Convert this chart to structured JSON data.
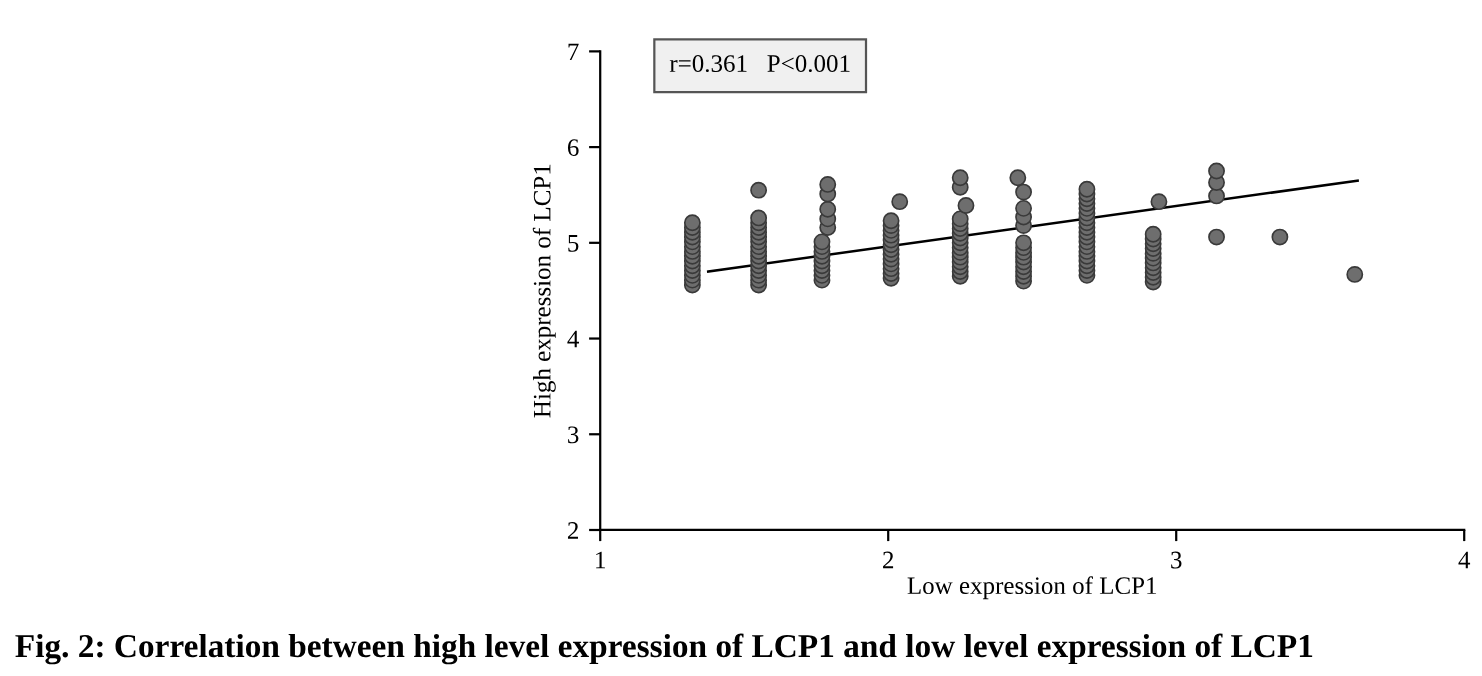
{
  "chart_data": {
    "type": "scatter",
    "title": "Fig. 2: Correlation between high level expression of LCP1 and low level expression of LCP1",
    "xlabel": "Low expression of LCP1",
    "ylabel": "High expression of LCP1",
    "xlim": [
      1,
      4
    ],
    "xticks": [
      1,
      2,
      3,
      4
    ],
    "ylim": [
      2,
      7
    ],
    "yticks": [
      2,
      3,
      4,
      5,
      6,
      7
    ],
    "grid": false,
    "legend": false,
    "annotations": [
      "r=0.361   P<0.001"
    ],
    "series": [
      {
        "color": "#6e6e6e",
        "marker": "circle",
        "x": [
          1.32,
          1.32,
          1.32,
          1.32,
          1.32,
          1.32,
          1.32,
          1.32,
          1.32,
          1.32,
          1.32,
          1.32,
          1.32,
          1.32,
          1.55,
          1.55,
          1.55,
          1.55,
          1.55,
          1.55,
          1.55,
          1.55,
          1.55,
          1.55,
          1.55,
          1.55,
          1.55,
          1.55,
          1.55,
          1.55,
          1.77,
          1.77,
          1.77,
          1.77,
          1.77,
          1.77,
          1.77,
          1.77,
          1.77,
          1.79,
          1.79,
          1.79,
          1.79,
          1.79,
          2.01,
          2.01,
          2.01,
          2.01,
          2.01,
          2.01,
          2.01,
          2.01,
          2.01,
          2.01,
          2.01,
          2.01,
          2.01,
          2.04,
          2.25,
          2.25,
          2.25,
          2.25,
          2.25,
          2.25,
          2.25,
          2.25,
          2.25,
          2.25,
          2.25,
          2.25,
          2.25,
          2.25,
          2.25,
          2.27,
          2.47,
          2.47,
          2.47,
          2.47,
          2.47,
          2.47,
          2.47,
          2.47,
          2.47,
          2.47,
          2.47,
          2.47,
          2.47,
          2.45,
          2.69,
          2.69,
          2.69,
          2.69,
          2.69,
          2.69,
          2.69,
          2.69,
          2.69,
          2.69,
          2.69,
          2.69,
          2.69,
          2.69,
          2.69,
          2.69,
          2.69,
          2.69,
          2.69,
          2.92,
          2.92,
          2.92,
          2.92,
          2.92,
          2.92,
          2.92,
          2.92,
          2.92,
          2.92,
          2.92,
          2.94,
          3.14,
          3.14,
          3.14,
          3.14,
          3.36,
          3.62
        ],
        "values": [
          4.56,
          4.61,
          4.66,
          4.71,
          4.76,
          4.81,
          4.86,
          4.91,
          4.96,
          5.01,
          5.06,
          5.11,
          5.16,
          5.21,
          4.56,
          4.61,
          4.66,
          4.71,
          4.76,
          4.81,
          4.86,
          4.91,
          4.96,
          5.01,
          5.06,
          5.11,
          5.16,
          5.21,
          5.26,
          5.55,
          4.61,
          4.66,
          4.71,
          4.76,
          4.81,
          4.86,
          4.91,
          4.96,
          5.01,
          5.16,
          5.25,
          5.35,
          5.51,
          5.61,
          4.63,
          4.68,
          4.73,
          4.78,
          4.83,
          4.88,
          4.93,
          4.98,
          5.03,
          5.08,
          5.13,
          5.18,
          5.23,
          5.43,
          4.65,
          4.7,
          4.75,
          4.8,
          4.85,
          4.9,
          4.95,
          5.0,
          5.05,
          5.1,
          5.15,
          5.2,
          5.25,
          5.58,
          5.68,
          5.39,
          4.6,
          4.65,
          4.7,
          4.75,
          4.8,
          4.85,
          4.9,
          4.95,
          5.0,
          5.18,
          5.27,
          5.36,
          5.53,
          5.68,
          4.66,
          4.71,
          4.76,
          4.81,
          4.86,
          4.91,
          4.96,
          5.01,
          5.06,
          5.11,
          5.16,
          5.21,
          5.26,
          5.31,
          5.36,
          5.41,
          5.46,
          5.51,
          5.56,
          4.59,
          4.64,
          4.69,
          4.74,
          4.79,
          4.84,
          4.89,
          4.94,
          4.99,
          5.04,
          5.09,
          5.43,
          5.06,
          5.49,
          5.63,
          5.75,
          5.06,
          4.67
        ]
      },
      {
        "type": "line",
        "marker": "none",
        "color": "#000000",
        "x": [
          1.375,
          3.63
        ],
        "values": [
          4.7,
          5.65
        ]
      }
    ]
  }
}
